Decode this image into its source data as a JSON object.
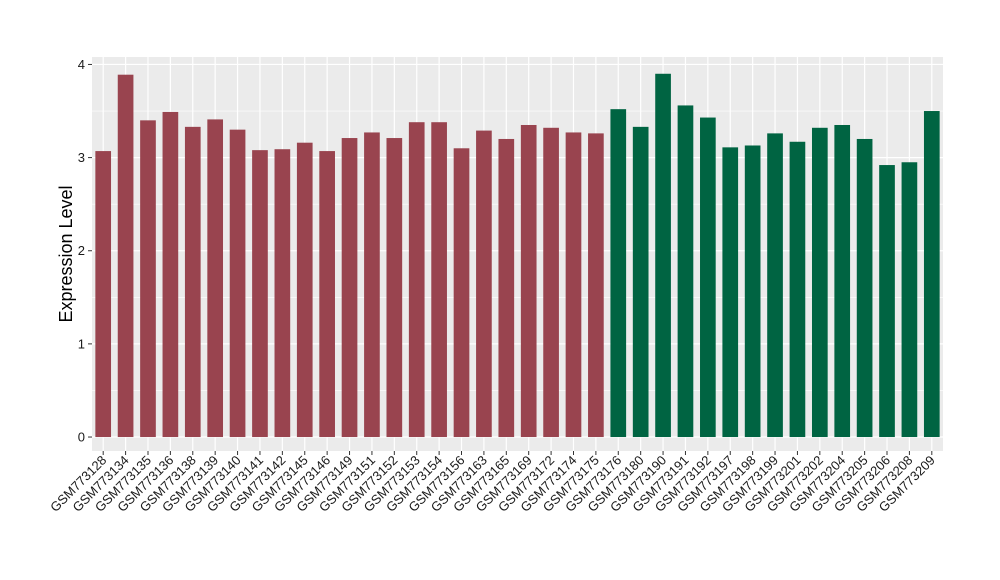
{
  "chart_data": {
    "type": "bar",
    "ylabel": "Expression Level",
    "xlabel": "",
    "ylim": [
      -0.15,
      4.08
    ],
    "yticks": [
      0,
      1,
      2,
      3,
      4
    ],
    "grid": true,
    "background": "#ebebeb",
    "grid_color": "#ffffff",
    "group_colors": {
      "group1": "#99444f",
      "group2": "#006442"
    },
    "categories": [
      "GSM773128",
      "GSM773134",
      "GSM773135",
      "GSM773136",
      "GSM773138",
      "GSM773139",
      "GSM773140",
      "GSM773141",
      "GSM773142",
      "GSM773145",
      "GSM773146",
      "GSM773149",
      "GSM773151",
      "GSM773152",
      "GSM773153",
      "GSM773154",
      "GSM773156",
      "GSM773163",
      "GSM773165",
      "GSM773169",
      "GSM773172",
      "GSM773174",
      "GSM773175",
      "GSM773176",
      "GSM773180",
      "GSM773190",
      "GSM773191",
      "GSM773192",
      "GSM773197",
      "GSM773198",
      "GSM773199",
      "GSM773201",
      "GSM773202",
      "GSM773204",
      "GSM773205",
      "GSM773206",
      "GSM773208",
      "GSM773209"
    ],
    "values": [
      3.07,
      3.89,
      3.4,
      3.49,
      3.33,
      3.41,
      3.3,
      3.08,
      3.09,
      3.16,
      3.07,
      3.21,
      3.27,
      3.21,
      3.38,
      3.38,
      3.1,
      3.29,
      3.2,
      3.35,
      3.32,
      3.27,
      3.26,
      3.52,
      3.33,
      3.9,
      3.56,
      3.43,
      3.11,
      3.13,
      3.26,
      3.17,
      3.32,
      3.35,
      3.2,
      2.92,
      2.95,
      3.5
    ],
    "groups": [
      "group1",
      "group1",
      "group1",
      "group1",
      "group1",
      "group1",
      "group1",
      "group1",
      "group1",
      "group1",
      "group1",
      "group1",
      "group1",
      "group1",
      "group1",
      "group1",
      "group1",
      "group1",
      "group1",
      "group1",
      "group1",
      "group1",
      "group1",
      "group2",
      "group2",
      "group2",
      "group2",
      "group2",
      "group2",
      "group2",
      "group2",
      "group2",
      "group2",
      "group2",
      "group2",
      "group2",
      "group2",
      "group2"
    ]
  }
}
